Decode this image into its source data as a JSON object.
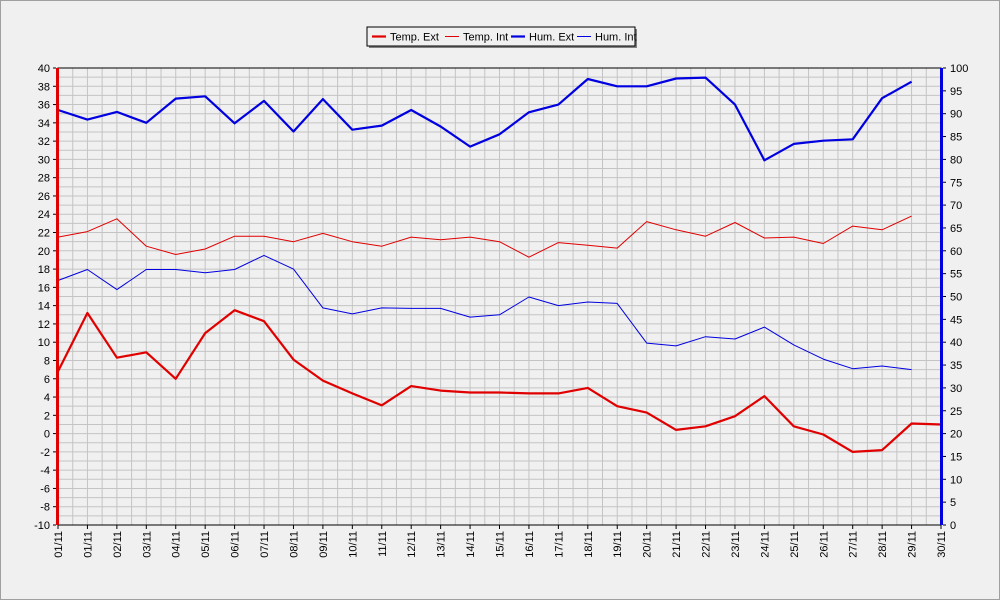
{
  "chart_data": {
    "type": "line",
    "title": "",
    "xlabel": "",
    "ylabel": "",
    "y2label": "",
    "categories": [
      "01/11",
      "01/11",
      "02/11",
      "03/11",
      "04/11",
      "05/11",
      "06/11",
      "07/11",
      "08/11",
      "09/11",
      "10/11",
      "11/11",
      "12/11",
      "13/11",
      "14/11",
      "15/11",
      "16/11",
      "17/11",
      "18/11",
      "19/11",
      "20/11",
      "21/11",
      "22/11",
      "23/11",
      "24/11",
      "25/11",
      "26/11",
      "27/11",
      "28/11",
      "29/11",
      "30/11"
    ],
    "ylim": [
      -10,
      40
    ],
    "y2lim": [
      0,
      100
    ],
    "yticks": [
      -10,
      -8,
      -6,
      -4,
      -2,
      0,
      2,
      4,
      6,
      8,
      10,
      12,
      14,
      16,
      18,
      20,
      22,
      24,
      26,
      28,
      30,
      32,
      34,
      36,
      38,
      40
    ],
    "y2ticks": [
      0,
      5,
      10,
      15,
      20,
      25,
      30,
      35,
      40,
      45,
      50,
      55,
      60,
      65,
      70,
      75,
      80,
      85,
      90,
      95,
      100
    ],
    "grid": true,
    "legend_position": "top-center",
    "series": [
      {
        "name": "Temp. Ext",
        "axis": "left",
        "color": "#e00000",
        "width": 2.2,
        "values": [
          6.8,
          13.2,
          8.3,
          8.9,
          6.0,
          11.0,
          13.5,
          12.3,
          8.1,
          5.8,
          4.4,
          3.1,
          5.2,
          4.7,
          4.5,
          4.5,
          4.4,
          4.4,
          5.0,
          3.0,
          2.3,
          0.4,
          0.8,
          1.9,
          4.1,
          0.8,
          -0.1,
          -2.0,
          -1.8,
          1.1,
          1.0
        ]
      },
      {
        "name": "Temp. Int",
        "axis": "left",
        "color": "#e00000",
        "width": 1,
        "values": [
          21.5,
          22.1,
          23.5,
          20.5,
          19.6,
          20.2,
          21.6,
          21.6,
          21.0,
          21.9,
          21.0,
          20.5,
          21.5,
          21.2,
          21.5,
          21.0,
          19.3,
          20.9,
          20.6,
          20.3,
          23.2,
          22.3,
          21.6,
          23.1,
          21.4,
          21.5,
          20.8,
          22.7,
          22.3,
          23.8,
          null
        ]
      },
      {
        "name": "Hum. Ext",
        "axis": "right",
        "color": "#0000e0",
        "width": 2.2,
        "values": [
          90.8,
          88.7,
          90.4,
          88.0,
          93.3,
          93.8,
          87.9,
          92.8,
          86.1,
          93.2,
          86.5,
          87.4,
          90.8,
          87.2,
          82.8,
          85.5,
          90.3,
          92.0,
          97.6,
          96.0,
          96.0,
          97.7,
          97.9,
          92.0,
          79.8,
          83.4,
          84.1,
          84.4,
          93.4,
          97.0,
          null
        ]
      },
      {
        "name": "Hum. Int",
        "axis": "right",
        "color": "#0000e0",
        "width": 1,
        "values": [
          53.5,
          55.9,
          51.5,
          55.9,
          55.9,
          55.2,
          55.9,
          59.0,
          56.0,
          47.5,
          46.2,
          47.5,
          47.4,
          47.4,
          45.5,
          46.0,
          49.9,
          48.0,
          48.8,
          48.5,
          39.8,
          39.2,
          41.2,
          40.7,
          43.3,
          39.4,
          36.3,
          34.2,
          34.8,
          34.0,
          null
        ]
      }
    ]
  }
}
